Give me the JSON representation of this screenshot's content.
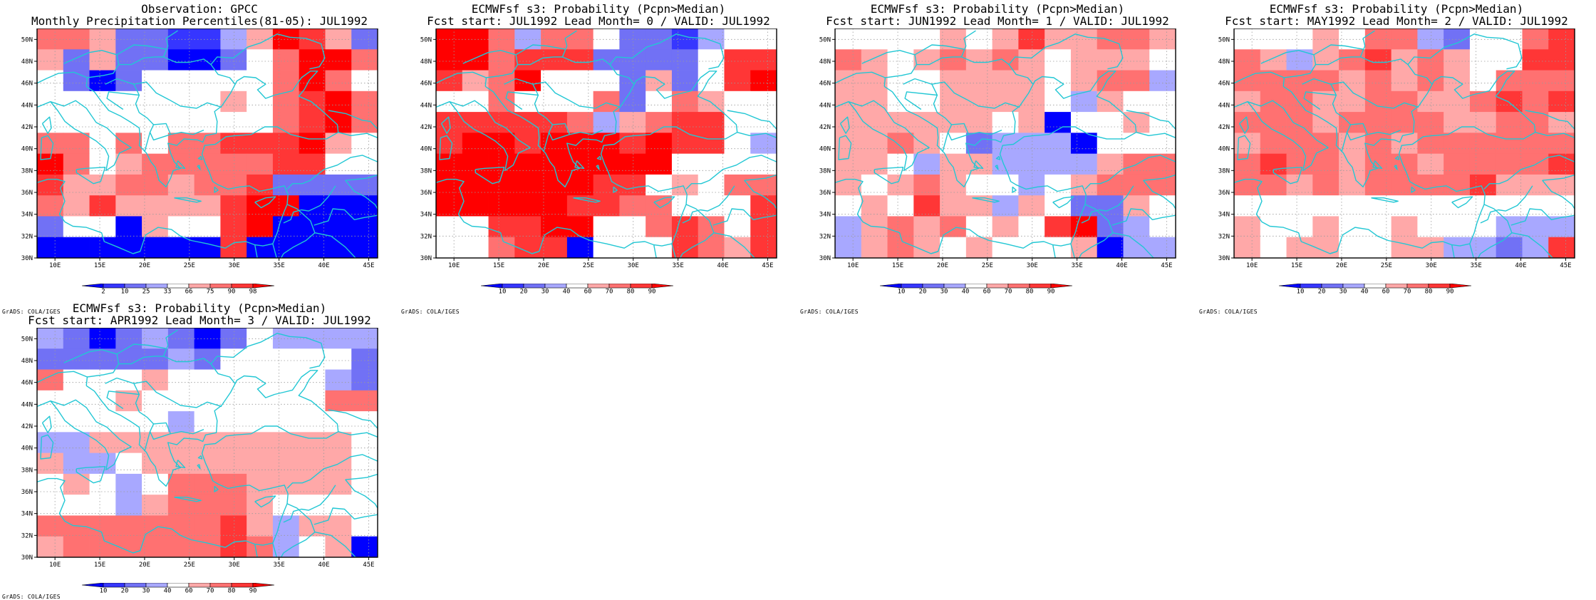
{
  "credit": "GrADS: COLA/IGES",
  "map_axes": {
    "lon_ticks": [
      "10E",
      "15E",
      "20E",
      "25E",
      "30E",
      "35E",
      "40E",
      "45E"
    ],
    "lat_ticks": [
      "30N",
      "32N",
      "34N",
      "36N",
      "38N",
      "40N",
      "42N",
      "44N",
      "46N",
      "48N",
      "50N"
    ]
  },
  "colors": {
    "coast": "#22c7d4",
    "palette": [
      "#0000ff",
      "#3636ff",
      "#7171f5",
      "#a8a8ff",
      "#ffffff",
      "#ffa8a8",
      "#ff7171",
      "#ff3636",
      "#ff0000"
    ]
  },
  "panels": [
    {
      "title_line1": "Observation: GPCC",
      "title_line2": "Monthly Precipitation Percentiles(81-05): JUL1992",
      "colorbar_labels": [
        "2",
        "10",
        "25",
        "33",
        "66",
        "75",
        "90",
        "98"
      ],
      "grid": [
        "6 6 5 2 2 1 1 3 5 8 7 5 2",
        "5 2 5 2 2 0 0 2 4 6 8 8 6",
        "4 2 0 2 4 4 4 4 4 6 8 6 4",
        "4 4 4 4 4 4 4 5 4 6 7 8 6",
        "4 4 4 4 4 4 4 4 4 6 7 8 6",
        "6 6 4 6 4 6 6 7 7 7 8 5 4",
        "8 6 4 5 6 6 6 6 6 7 7 4 4",
        "7 5 5 6 6 5 6 6 7 2 2 2 2",
        "6 5 7 5 5 5 5 7 8 8 0 0 0",
        "2 4 4 0 5 4 4 7 8 0 0 0 0",
        "0 0 0 0 0 0 0 7 0 0 0 0 0"
      ]
    },
    {
      "title_line1": "ECMWFsf s3: Probability (Pcpn>Median)",
      "title_line2": "Fcst start: JUL1992  Lead Month= 0 / VALID: JUL1992",
      "colorbar_labels": [
        "10",
        "20",
        "30",
        "40",
        "60",
        "70",
        "80",
        "90"
      ],
      "grid": [
        "8 8 6 3 6 6 4 2 2 1 3 4 4",
        "8 8 6 7 7 7 2 2 2 2 4 7 7",
        "7 5 6 8 4 4 4 2 5 2 4 7 8",
        "4 4 6 4 4 4 6 2 4 6 5 4 4",
        "7 7 7 7 7 6 3 5 6 7 7 4 4",
        "7 8 8 7 8 8 8 7 8 7 7 4 3",
        "8 8 8 8 8 8 8 8 8 4 4 4 4",
        "8 8 8 8 8 8 7 7 4 5 4 6 6",
        "8 8 8 8 8 7 7 6 6 4 4 4 7",
        "4 4 7 7 8 8 4 4 6 7 6 4 7",
        "4 4 6 7 7 0 4 4 4 7 6 5 7"
      ]
    },
    {
      "title_line1": "ECMWFsf s3: Probability (Pcpn>Median)",
      "title_line2": "Fcst start: JUN1992  Lead Month= 1 / VALID: JUL1992",
      "colorbar_labels": [
        "10",
        "20",
        "30",
        "40",
        "60",
        "70",
        "80",
        "90"
      ],
      "grid": [
        "4 4 4 4 5 4 5 7 5 5 6 6 5",
        "6 5 4 5 6 5 6 5 4 5 5 5 4",
        "5 5 4 4 5 5 5 5 4 5 6 6 3",
        "5 5 4 4 5 5 5 5 4 3 5 4 4",
        "5 5 5 5 5 5 4 5 0 4 4 5 4",
        "5 5 6 5 4 2 3 3 3 0 4 4 4",
        "5 5 4 3 5 5 3 3 3 3 5 6 6",
        "5 4 5 6 5 4 4 3 4 5 6 6 6",
        "4 5 4 7 5 5 3 5 4 2 2 5 4",
        "3 5 6 5 6 4 5 4 7 8 2 3 4",
        "3 5 6 5 4 5 4 4 4 5 0 3 3"
      ]
    },
    {
      "title_line1": "ECMWFsf s3: Probability (Pcpn>Median)",
      "title_line2": "Fcst start: MAY1992  Lead Month= 2 / VALID: JUL1992",
      "colorbar_labels": [
        "10",
        "20",
        "30",
        "40",
        "60",
        "70",
        "80",
        "90"
      ],
      "grid": [
        "4 4 4 5 4 6 6 3 2 4 4 6 7",
        "6 5 3 5 6 7 5 6 5 4 4 7 7",
        "6 6 6 6 5 6 5 6 5 4 6 6 6",
        "5 6 6 5 5 6 6 5 5 6 7 6 7",
        "6 6 6 5 6 6 6 6 5 5 6 6 5",
        "5 6 6 6 5 6 5 6 6 6 6 6 6",
        "6 7 6 6 5 6 6 5 6 6 6 6 7",
        "6 6 5 6 5 6 6 6 6 7 5 5 5",
        "4 4 4 4 4 4 4 4 4 4 4 4 4",
        "5 4 4 5 4 4 5 4 4 4 3 3 3",
        "5 4 5 5 4 4 5 5 3 3 2 3 7"
      ]
    },
    {
      "title_line1": "ECMWFsf s3: Probability (Pcpn>Median)",
      "title_line2": "Fcst start: APR1992  Lead Month= 3 / VALID: JUL1992",
      "colorbar_labels": [
        "10",
        "20",
        "30",
        "40",
        "60",
        "70",
        "80",
        "90"
      ],
      "grid": [
        "3 2 0 2 3 2 0 2 4 3 3 3 3",
        "2 2 2 2 2 3 2 4 4 4 4 4 2",
        "6 4 4 4 5 4 4 4 4 4 4 3 2",
        "4 4 4 5 4 4 4 4 4 4 4 6 6",
        "4 4 4 4 4 3 4 4 4 4 4 4 4",
        "3 3 5 5 5 5 5 5 5 5 5 5 4",
        "5 3 3 4 5 5 5 5 5 5 5 5 4",
        "4 5 4 3 4 6 6 6 5 5 5 5 4",
        "4 4 4 3 5 6 6 6 5 4 4 4 4",
        "6 6 6 6 6 6 6 7 5 3 5 5 4",
        "5 6 6 6 6 6 6 7 6 3 4 5 0"
      ]
    }
  ]
}
